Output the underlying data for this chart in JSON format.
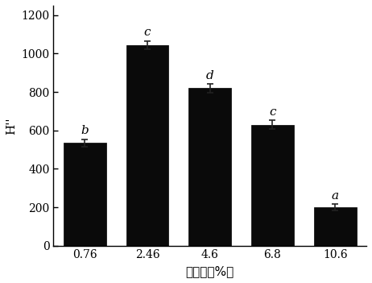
{
  "categories": [
    "0.76",
    "2.46",
    "4.6",
    "6.8",
    "10.6"
  ],
  "values": [
    535,
    1045,
    820,
    630,
    200
  ],
  "errors": [
    18,
    22,
    22,
    22,
    15
  ],
  "labels": [
    "b",
    "c",
    "d",
    "c",
    "a"
  ],
  "bar_color": "#0a0a0a",
  "title": "",
  "xlabel": "水解度（%）",
  "ylabel": "H''",
  "ylim": [
    0,
    1250
  ],
  "yticks": [
    0,
    200,
    400,
    600,
    800,
    1000,
    1200
  ],
  "figsize": [
    4.62,
    3.51
  ],
  "dpi": 100,
  "bar_width": 0.68,
  "axis_fontsize": 11,
  "tick_fontsize": 10,
  "annotation_fontsize": 11,
  "errorbar_color": "#222222",
  "errorbar_capsize": 3,
  "errorbar_linewidth": 1.2
}
